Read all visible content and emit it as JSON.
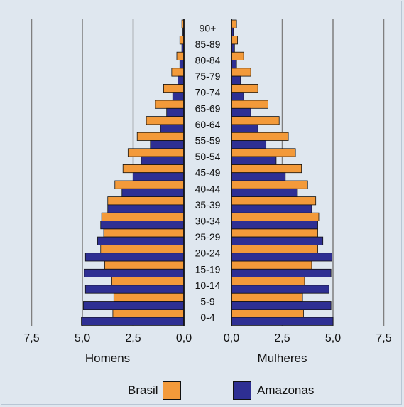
{
  "chart_data": {
    "type": "bar",
    "orientation": "horizontal",
    "layout": "population-pyramid",
    "categories": [
      "90+",
      "85-89",
      "80-84",
      "75-79",
      "70-74",
      "65-69",
      "60-64",
      "55-59",
      "50-54",
      "45-49",
      "40-44",
      "35-39",
      "30-34",
      "25-29",
      "20-24",
      "15-19",
      "10-14",
      "5-9",
      "0-4"
    ],
    "panels": [
      {
        "label": "Homens",
        "side": "left",
        "tick_labels": [
          "7,5",
          "5,0",
          "2,5",
          "0,0"
        ],
        "xlim": [
          0,
          7.5
        ],
        "series": [
          {
            "name": "Brasil",
            "values": [
              0.1,
              0.2,
              0.35,
              0.6,
              1.0,
              1.4,
              1.85,
              2.3,
              2.75,
              3.0,
              3.4,
              3.75,
              4.05,
              3.95,
              4.1,
              3.9,
              3.55,
              3.45,
              3.5
            ]
          },
          {
            "name": "Amazonas",
            "values": [
              0.05,
              0.1,
              0.2,
              0.3,
              0.55,
              0.85,
              1.15,
              1.65,
              2.1,
              2.5,
              3.05,
              3.75,
              4.1,
              4.25,
              4.85,
              4.9,
              4.85,
              4.95,
              5.05
            ]
          }
        ]
      },
      {
        "label": "Mulheres",
        "side": "right",
        "tick_labels": [
          "0,0",
          "2,5",
          "5,0",
          "7,5"
        ],
        "xlim": [
          0,
          7.5
        ],
        "series": [
          {
            "name": "Brasil",
            "values": [
              0.25,
              0.3,
              0.6,
              0.95,
              1.3,
              1.8,
              2.35,
              2.8,
              3.15,
              3.45,
              3.75,
              4.15,
              4.3,
              4.25,
              4.25,
              3.95,
              3.6,
              3.5,
              3.55
            ]
          },
          {
            "name": "Amazonas",
            "values": [
              0.1,
              0.15,
              0.25,
              0.45,
              0.6,
              0.95,
              1.3,
              1.7,
              2.2,
              2.65,
              3.25,
              3.95,
              4.25,
              4.5,
              4.95,
              4.9,
              4.8,
              4.9,
              5.0
            ]
          }
        ]
      }
    ],
    "colors": {
      "Brasil": "#f39a3a",
      "Amazonas": "#2e2f93",
      "grid": "#7f7f7f",
      "background": "#dfe7ef"
    },
    "grid": true,
    "legend": {
      "position": "bottom",
      "entries": [
        "Brasil",
        "Amazonas"
      ]
    }
  }
}
